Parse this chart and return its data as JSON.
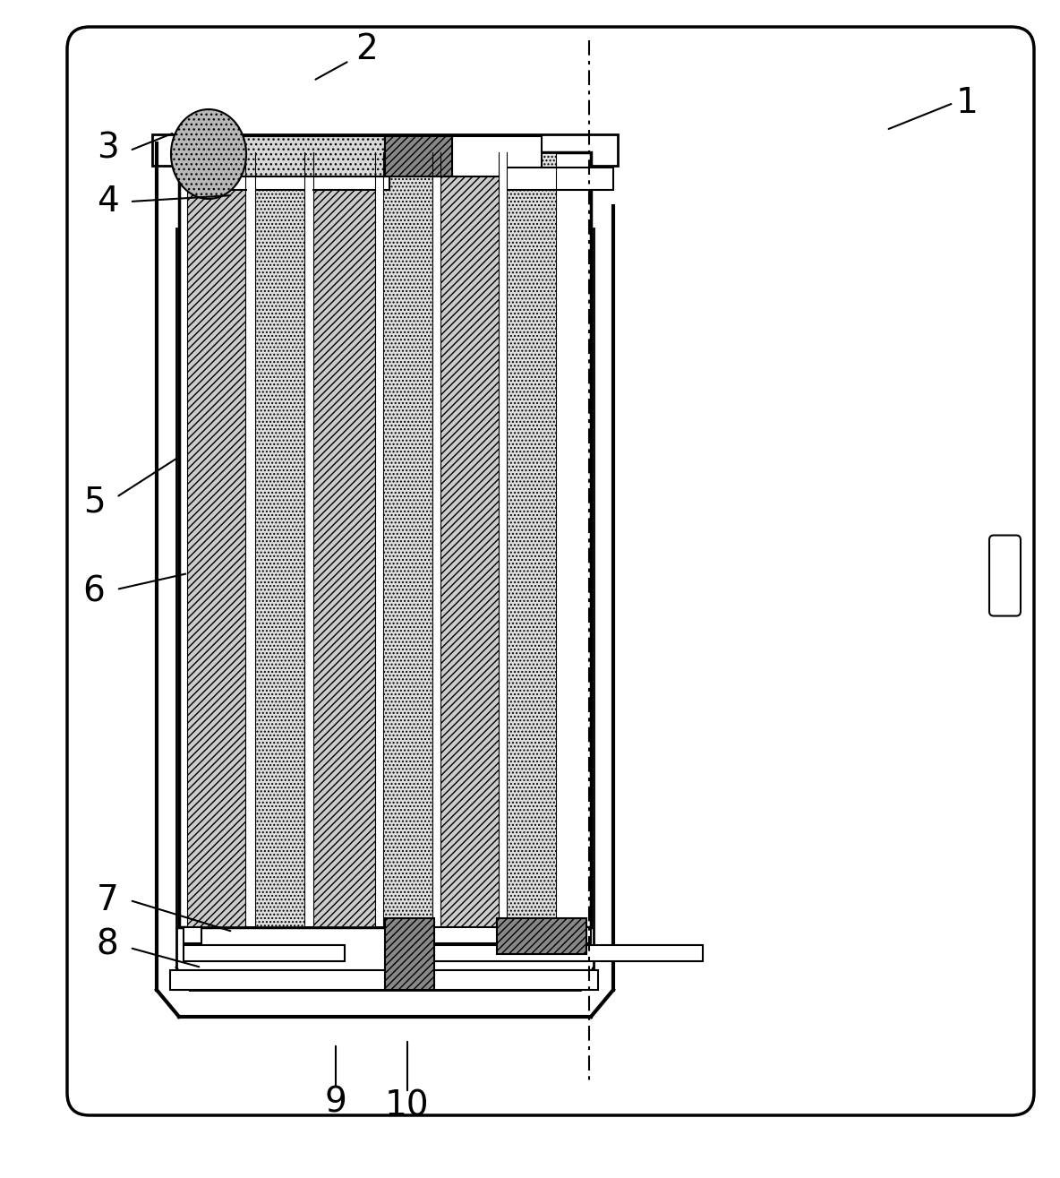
{
  "bg_color": "#ffffff",
  "lc": "#000000",
  "fig_w": 11.84,
  "fig_h": 13.15,
  "dpi": 100,
  "labels": [
    "1",
    "2",
    "3",
    "4",
    "5",
    "6",
    "7",
    "8",
    "9",
    "10"
  ],
  "label_bold": [
    false,
    false,
    false,
    false,
    false,
    false,
    false,
    false,
    false,
    true
  ]
}
